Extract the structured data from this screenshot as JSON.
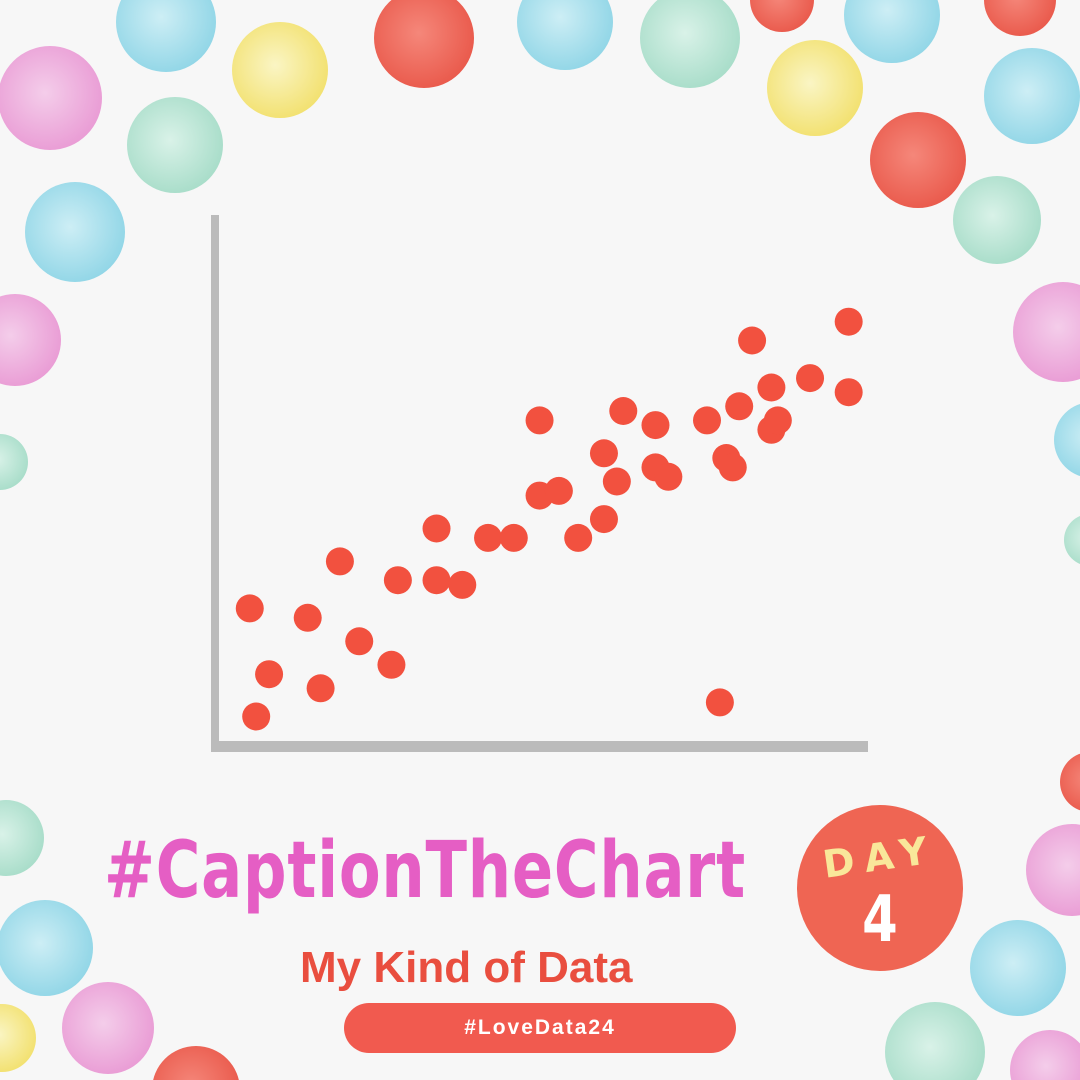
{
  "caption": {
    "hashtag": "#CaptionTheChart",
    "subtitle": "My Kind of Data",
    "tag": "#LoveData24"
  },
  "badge": {
    "word": "DAY",
    "number": "4"
  },
  "colors": {
    "background": "#f7f7f7",
    "points": "#f2513f",
    "axes": "#bbbbbb",
    "hashtag": "#e55ec4",
    "subtitle": "#e94e3f",
    "pill": "#f15a4f",
    "badge": "#ef6553",
    "badge_word": "#f9e79a"
  },
  "chart_data": {
    "type": "scatter",
    "title": "",
    "xlabel": "",
    "ylabel": "",
    "xlim": [
      0,
      100
    ],
    "ylim": [
      0,
      100
    ],
    "grid": false,
    "series": [
      {
        "points": [
          {
            "x": 5,
            "y": 5
          },
          {
            "x": 7,
            "y": 14
          },
          {
            "x": 4,
            "y": 28
          },
          {
            "x": 15,
            "y": 11
          },
          {
            "x": 13,
            "y": 26
          },
          {
            "x": 18,
            "y": 38
          },
          {
            "x": 21,
            "y": 21
          },
          {
            "x": 26,
            "y": 16
          },
          {
            "x": 27,
            "y": 34
          },
          {
            "x": 33,
            "y": 34
          },
          {
            "x": 33,
            "y": 45
          },
          {
            "x": 37,
            "y": 33
          },
          {
            "x": 41,
            "y": 43
          },
          {
            "x": 45,
            "y": 43
          },
          {
            "x": 49,
            "y": 52
          },
          {
            "x": 49,
            "y": 68
          },
          {
            "x": 52,
            "y": 53
          },
          {
            "x": 55,
            "y": 43
          },
          {
            "x": 59,
            "y": 47
          },
          {
            "x": 59,
            "y": 61
          },
          {
            "x": 61,
            "y": 55
          },
          {
            "x": 62,
            "y": 70
          },
          {
            "x": 67,
            "y": 58
          },
          {
            "x": 67,
            "y": 67
          },
          {
            "x": 69,
            "y": 56
          },
          {
            "x": 75,
            "y": 68
          },
          {
            "x": 77,
            "y": 8
          },
          {
            "x": 78,
            "y": 60
          },
          {
            "x": 79,
            "y": 58
          },
          {
            "x": 80,
            "y": 71
          },
          {
            "x": 82,
            "y": 85
          },
          {
            "x": 85,
            "y": 66
          },
          {
            "x": 85,
            "y": 75
          },
          {
            "x": 86,
            "y": 68
          },
          {
            "x": 91,
            "y": 77
          },
          {
            "x": 97,
            "y": 89
          },
          {
            "x": 97,
            "y": 74
          }
        ]
      }
    ]
  }
}
